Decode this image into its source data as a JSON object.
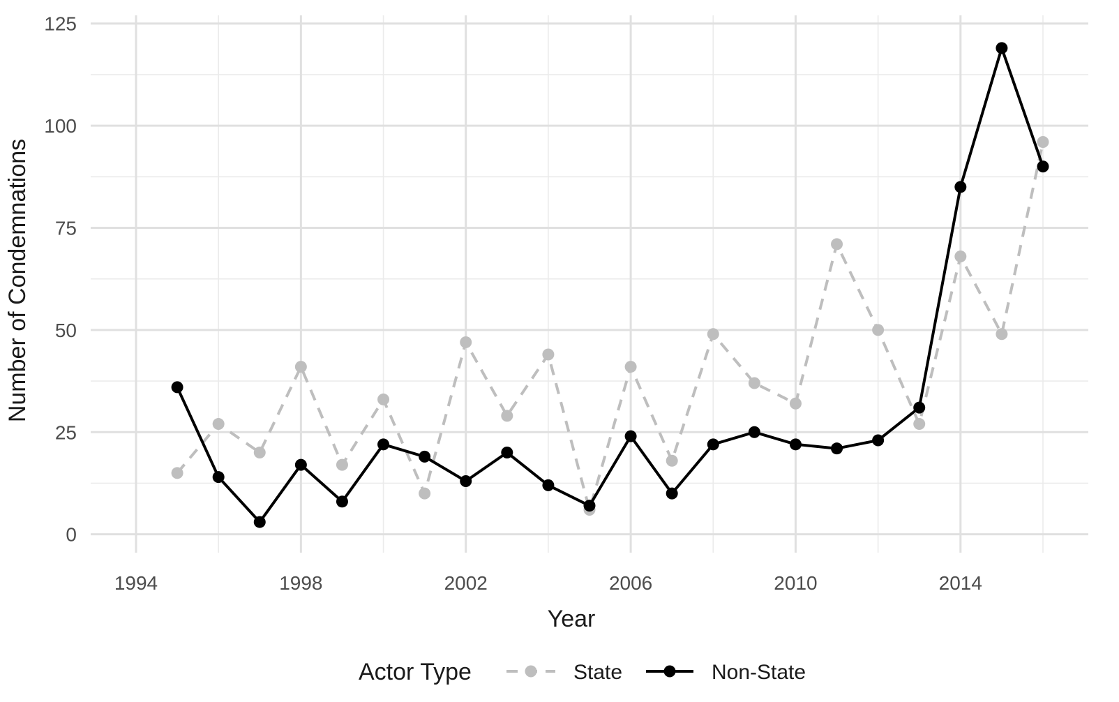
{
  "chart_data": {
    "type": "line",
    "title": "",
    "xlabel": "Year",
    "ylabel": "Number of Condemnations",
    "xlim": [
      1992.9,
      2017.1
    ],
    "ylim": [
      -4.5,
      127
    ],
    "x_ticks": [
      1994,
      1998,
      2002,
      2006,
      2010,
      2014
    ],
    "x_tick_labels": [
      "1994",
      "1998",
      "2002",
      "2006",
      "2010",
      "2014"
    ],
    "y_ticks": [
      0,
      25,
      50,
      75,
      100,
      125
    ],
    "y_tick_labels": [
      "0",
      "25",
      "50",
      "75",
      "100",
      "125"
    ],
    "grid": true,
    "legend": {
      "title": "Actor Type",
      "placement": "bottom",
      "entries": [
        "State",
        "Non-State"
      ]
    },
    "x": [
      1995,
      1996,
      1997,
      1998,
      1999,
      2000,
      2001,
      2002,
      2003,
      2004,
      2005,
      2006,
      2007,
      2008,
      2009,
      2010,
      2011,
      2012,
      2013,
      2014,
      2015,
      2016
    ],
    "series": [
      {
        "name": "State",
        "color": "#bebebe",
        "line_style": "dashed",
        "values": [
          15,
          27,
          20,
          41,
          17,
          33,
          10,
          47,
          29,
          44,
          6,
          41,
          18,
          49,
          37,
          32,
          71,
          50,
          27,
          68,
          49,
          96
        ]
      },
      {
        "name": "Non-State",
        "color": "#000000",
        "line_style": "solid",
        "values": [
          36,
          14,
          3,
          17,
          8,
          22,
          19,
          13,
          20,
          12,
          7,
          24,
          10,
          22,
          25,
          22,
          21,
          23,
          31,
          85,
          119,
          90
        ]
      }
    ]
  }
}
